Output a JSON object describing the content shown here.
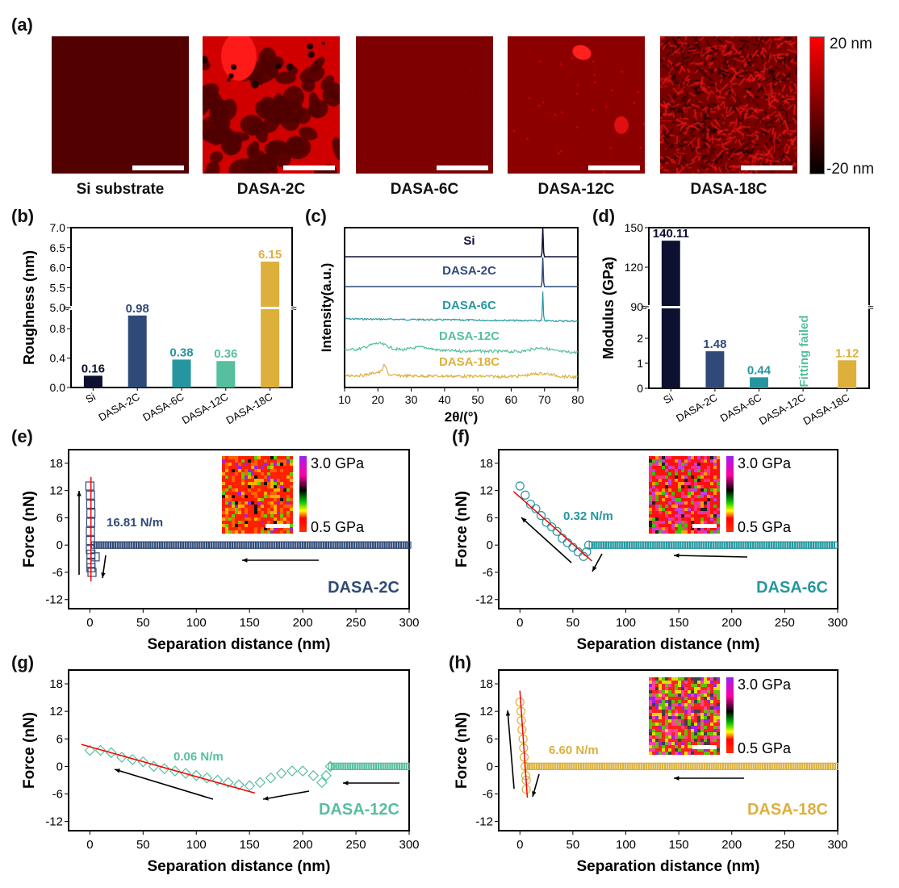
{
  "panels": {
    "a": "(a)",
    "b": "(b)",
    "c": "(c)",
    "d": "(d)",
    "e": "(e)",
    "f": "(f)",
    "g": "(g)",
    "h": "(h)"
  },
  "afm": {
    "images": [
      {
        "caption": "Si substrate",
        "style": "flat-dark"
      },
      {
        "caption": "DASA-2C",
        "style": "dewetted-network"
      },
      {
        "caption": "DASA-6C",
        "style": "flat-medium"
      },
      {
        "caption": "DASA-12C",
        "style": "flat-with-particles"
      },
      {
        "caption": "DASA-18C",
        "style": "fibrous-rough"
      }
    ],
    "colorbar": {
      "max_label": "20 nm",
      "min_label": "-20 nm",
      "top_color": "#ff0000",
      "bottom_color": "#000000"
    }
  },
  "colors": {
    "Si": "#0d1030",
    "DASA-2C": "#2f4a78",
    "DASA-6C": "#2596a0",
    "DASA-12C": "#56bfa0",
    "DASA-18C": "#ddb03c",
    "fit": "#ff0000"
  },
  "modulus_colorbar": {
    "max_label": "3.0 GPa",
    "min_label": "0.5 GPa"
  },
  "chart_data": [
    {
      "id": "b",
      "type": "bar",
      "title": "",
      "xlabel": "",
      "ylabel": "Roughness (nm)",
      "categories": [
        "Si",
        "DASA-2C",
        "DASA-6C",
        "DASA-12C",
        "DASA-18C"
      ],
      "values": [
        0.16,
        0.98,
        0.38,
        0.36,
        6.15
      ],
      "data_labels": [
        "0.16",
        "0.98",
        "0.38",
        "0.36",
        "6.15"
      ],
      "axis_break": {
        "lower": [
          0.0,
          1.0
        ],
        "upper": [
          5.0,
          7.0
        ]
      },
      "yticks_lower": [
        "0.0",
        "0.4",
        "0.8"
      ],
      "yticks_upper": [
        "5.0",
        "5.5",
        "6.0",
        "6.5",
        "7.0"
      ],
      "grid": false
    },
    {
      "id": "c",
      "type": "line",
      "xlabel": "2θ/(°)",
      "ylabel": "Intensity(a.u.)",
      "xlim": [
        10,
        80
      ],
      "xticks": [
        "10",
        "20",
        "30",
        "40",
        "50",
        "60",
        "70",
        "80"
      ],
      "series": [
        {
          "name": "Si",
          "label": "Si",
          "features": "sharp peak at 69.5°, flat baseline"
        },
        {
          "name": "DASA-2C",
          "label": "DASA-2C",
          "features": "sharp peak at 69.5°, flat baseline"
        },
        {
          "name": "DASA-6C",
          "label": "DASA-6C",
          "features": "sharp peak at 69.5°, slightly decreasing baseline"
        },
        {
          "name": "DASA-12C",
          "label": "DASA-12C",
          "features": "broad humps near 20° and 69°"
        },
        {
          "name": "DASA-18C",
          "label": "DASA-18C",
          "features": "peak at 22°, broad hump near 69°"
        }
      ],
      "grid": false
    },
    {
      "id": "d",
      "type": "bar",
      "ylabel": "Modulus (GPa)",
      "categories": [
        "Si",
        "DASA-2C",
        "DASA-6C",
        "DASA-12C",
        "DASA-18C"
      ],
      "values": [
        140.11,
        1.48,
        0.44,
        null,
        1.12
      ],
      "data_labels": [
        "140.11",
        "1.48",
        "0.44",
        "",
        "1.12"
      ],
      "annotation": "Fitting failed",
      "axis_break": {
        "lower": [
          0,
          3
        ],
        "upper": [
          90,
          150
        ]
      },
      "yticks_lower": [
        "0",
        "1",
        "2"
      ],
      "yticks_upper": [
        "90",
        "120",
        "150"
      ],
      "grid": false
    },
    {
      "id": "e",
      "type": "scatter",
      "sample": "DASA-2C",
      "xlabel": "Separation distance (nm)",
      "ylabel": "Force (nN)",
      "xlim": [
        -20,
        300
      ],
      "ylim": [
        -14,
        21
      ],
      "xticks": [
        "0",
        "50",
        "100",
        "150",
        "200",
        "250",
        "300"
      ],
      "yticks": [
        "-12",
        "-6",
        "0",
        "6",
        "12",
        "18"
      ],
      "slope_label": "16.81 N/m",
      "contact_curve": [
        [
          0,
          13
        ],
        [
          0.5,
          11
        ],
        [
          0.8,
          9
        ],
        [
          1,
          7
        ],
        [
          0.8,
          5
        ],
        [
          0.5,
          3
        ],
        [
          0.5,
          1
        ],
        [
          0.5,
          -1
        ],
        [
          1,
          -2
        ],
        [
          5,
          -2.6
        ],
        [
          1,
          -4
        ],
        [
          1,
          -5
        ],
        [
          2,
          -6
        ]
      ],
      "approach_curve": [
        [
          3,
          0
        ],
        [
          300,
          0
        ]
      ],
      "fit_line": [
        [
          1,
          15
        ],
        [
          1,
          -8
        ]
      ],
      "has_inset": true
    },
    {
      "id": "f",
      "type": "scatter",
      "sample": "DASA-6C",
      "xlabel": "Separation distance (nm)",
      "ylabel": "Force (nN)",
      "xlim": [
        -20,
        300
      ],
      "ylim": [
        -14,
        21
      ],
      "xticks": [
        "0",
        "50",
        "100",
        "150",
        "200",
        "250",
        "300"
      ],
      "yticks": [
        "-12",
        "-6",
        "0",
        "6",
        "12",
        "18"
      ],
      "slope_label": "0.32 N/m",
      "contact_curve": [
        [
          0,
          13
        ],
        [
          5,
          11
        ],
        [
          10,
          9
        ],
        [
          15,
          8
        ],
        [
          20,
          6.5
        ],
        [
          25,
          5
        ],
        [
          30,
          4
        ],
        [
          35,
          3
        ],
        [
          40,
          1.5
        ],
        [
          45,
          0.5
        ],
        [
          50,
          -0.5
        ],
        [
          55,
          -1.5
        ],
        [
          60,
          -2.5
        ],
        [
          63,
          -1.5
        ],
        [
          65,
          0
        ]
      ],
      "approach_curve": [
        [
          67,
          0
        ],
        [
          300,
          0
        ]
      ],
      "fit_line": [
        [
          -6,
          11.8
        ],
        [
          68,
          -3.5
        ]
      ],
      "has_inset": true
    },
    {
      "id": "g",
      "type": "scatter",
      "sample": "DASA-12C",
      "xlabel": "Separation distance (nm)",
      "ylabel": "Force (nN)",
      "xlim": [
        -20,
        300
      ],
      "ylim": [
        -14,
        21
      ],
      "xticks": [
        "0",
        "50",
        "100",
        "150",
        "200",
        "250",
        "300"
      ],
      "yticks": [
        "-12",
        "-6",
        "0",
        "6",
        "12",
        "18"
      ],
      "slope_label": "0.06 N/m",
      "contact_curve": [
        [
          0,
          3.5
        ],
        [
          10,
          3.5
        ],
        [
          20,
          3
        ],
        [
          30,
          2
        ],
        [
          40,
          1.5
        ],
        [
          50,
          1
        ],
        [
          60,
          0
        ],
        [
          70,
          -0.5
        ],
        [
          80,
          -1
        ],
        [
          90,
          -1.5
        ],
        [
          100,
          -2
        ],
        [
          110,
          -2.5
        ],
        [
          120,
          -3
        ],
        [
          130,
          -3.5
        ],
        [
          140,
          -4
        ],
        [
          150,
          -4.2
        ],
        [
          160,
          -3.5
        ],
        [
          170,
          -2.5
        ],
        [
          180,
          -1.5
        ],
        [
          190,
          -1
        ],
        [
          200,
          -1
        ],
        [
          210,
          -2
        ],
        [
          218,
          -3.5
        ],
        [
          222,
          -2
        ],
        [
          226,
          0
        ]
      ],
      "approach_curve": [
        [
          226,
          0
        ],
        [
          300,
          0
        ]
      ],
      "fit_line": [
        [
          -8,
          4.8
        ],
        [
          155,
          -5.8
        ]
      ],
      "has_inset": false
    },
    {
      "id": "h",
      "type": "scatter",
      "sample": "DASA-18C",
      "xlabel": "Separation distance (nm)",
      "ylabel": "Force (nN)",
      "xlim": [
        -20,
        300
      ],
      "ylim": [
        -14,
        21
      ],
      "xticks": [
        "0",
        "50",
        "100",
        "150",
        "200",
        "250",
        "300"
      ],
      "yticks": [
        "-12",
        "-6",
        "0",
        "6",
        "12",
        "18"
      ],
      "slope_label": "6.60 N/m",
      "contact_curve": [
        [
          0,
          14
        ],
        [
          1,
          12
        ],
        [
          1.5,
          10
        ],
        [
          2,
          8
        ],
        [
          3,
          6
        ],
        [
          3.5,
          4
        ],
        [
          4,
          2
        ],
        [
          5,
          0
        ],
        [
          5.5,
          -2
        ],
        [
          6,
          -3
        ],
        [
          6,
          -5
        ]
      ],
      "approach_curve": [
        [
          6,
          0
        ],
        [
          300,
          0
        ]
      ],
      "fit_line": [
        [
          0,
          16.5
        ],
        [
          7,
          -6.8
        ]
      ],
      "has_inset": true
    }
  ]
}
